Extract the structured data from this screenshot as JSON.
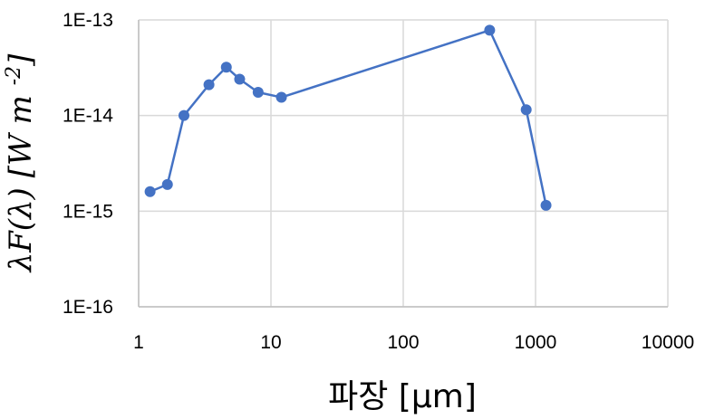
{
  "chart_data": {
    "type": "line",
    "xscale": "log",
    "yscale": "log",
    "xlim": [
      1,
      10000
    ],
    "ylim": [
      1e-16,
      1e-13
    ],
    "grid": true,
    "xlabel": "파장 [μm]",
    "ylabel": "λF(λ)  [W m-2]",
    "x_tick_values": [
      1,
      10,
      100,
      1000,
      10000
    ],
    "x_tick_labels": [
      "1",
      "10",
      "100",
      "1000",
      "10000"
    ],
    "y_tick_values": [
      1e-16,
      1e-15,
      1e-14,
      1e-13
    ],
    "y_tick_labels": [
      "1E-16",
      "1E-15",
      "1E-14",
      "1E-13"
    ],
    "series": [
      {
        "color": "#4472c4",
        "x": [
          1.22,
          1.65,
          2.2,
          3.4,
          4.6,
          5.8,
          8.0,
          12.0,
          450,
          850,
          1200
        ],
        "y": [
          1.6e-15,
          1.9e-15,
          1e-14,
          2.1e-14,
          3.2e-14,
          2.4e-14,
          1.75e-14,
          1.55e-14,
          7.8e-14,
          1.15e-14,
          1.15e-15
        ]
      }
    ]
  }
}
